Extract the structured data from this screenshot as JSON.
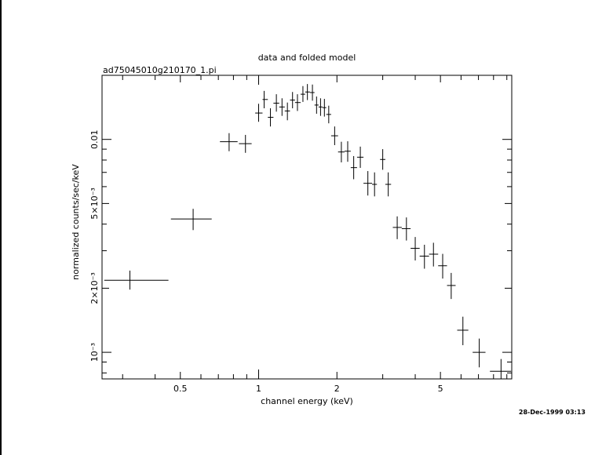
{
  "chart_data": {
    "type": "scatter",
    "title": "data and folded model",
    "subtitle": "ad75045010g210170_1.pi",
    "xlabel": "channel energy (keV)",
    "ylabel": "normalized counts/sec/keV",
    "x_scale": "log",
    "y_scale": "log",
    "xlim": [
      0.25,
      9.4
    ],
    "ylim": [
      0.00075,
      0.02
    ],
    "x_ticks": [
      {
        "value": 0.5,
        "label": "0.5"
      },
      {
        "value": 1,
        "label": "1"
      },
      {
        "value": 2,
        "label": "2"
      },
      {
        "value": 5,
        "label": "5"
      }
    ],
    "y_ticks": [
      {
        "value": 0.001,
        "label": "10⁻³"
      },
      {
        "value": 0.002,
        "label": "2×10⁻³"
      },
      {
        "value": 0.005,
        "label": "5×10⁻³"
      },
      {
        "value": 0.01,
        "label": "0.01"
      }
    ],
    "timestamp": "28-Dec-1999 03:13",
    "series": [
      {
        "points": [
          {
            "x": 0.32,
            "xlo": 0.255,
            "xhi": 0.45,
            "y": 0.00218,
            "ylo": 0.00197,
            "yhi": 0.00242
          },
          {
            "x": 0.56,
            "xlo": 0.46,
            "xhi": 0.66,
            "y": 0.00423,
            "ylo": 0.00375,
            "yhi": 0.00472
          },
          {
            "x": 0.77,
            "xlo": 0.71,
            "xhi": 0.83,
            "y": 0.00975,
            "ylo": 0.0088,
            "yhi": 0.0107
          },
          {
            "x": 0.89,
            "xlo": 0.84,
            "xhi": 0.94,
            "y": 0.00955,
            "ylo": 0.00865,
            "yhi": 0.0105
          },
          {
            "x": 1.0,
            "xlo": 0.97,
            "xhi": 1.035,
            "y": 0.0133,
            "ylo": 0.0121,
            "yhi": 0.0147
          },
          {
            "x": 1.05,
            "xlo": 1.035,
            "xhi": 1.085,
            "y": 0.0154,
            "ylo": 0.014,
            "yhi": 0.0169
          },
          {
            "x": 1.11,
            "xlo": 1.085,
            "xhi": 1.14,
            "y": 0.0127,
            "ylo": 0.0115,
            "yhi": 0.014
          },
          {
            "x": 1.17,
            "xlo": 1.14,
            "xhi": 1.2,
            "y": 0.0148,
            "ylo": 0.0135,
            "yhi": 0.0163
          },
          {
            "x": 1.23,
            "xlo": 1.2,
            "xhi": 1.26,
            "y": 0.0142,
            "ylo": 0.0129,
            "yhi": 0.0156
          },
          {
            "x": 1.29,
            "xlo": 1.26,
            "xhi": 1.32,
            "y": 0.0136,
            "ylo": 0.0123,
            "yhi": 0.0149
          },
          {
            "x": 1.35,
            "xlo": 1.32,
            "xhi": 1.38,
            "y": 0.0153,
            "ylo": 0.014,
            "yhi": 0.0167
          },
          {
            "x": 1.41,
            "xlo": 1.38,
            "xhi": 1.45,
            "y": 0.0149,
            "ylo": 0.0136,
            "yhi": 0.0163
          },
          {
            "x": 1.48,
            "xlo": 1.45,
            "xhi": 1.51,
            "y": 0.0163,
            "ylo": 0.015,
            "yhi": 0.0178
          },
          {
            "x": 1.54,
            "xlo": 1.51,
            "xhi": 1.575,
            "y": 0.0167,
            "ylo": 0.0153,
            "yhi": 0.0182
          },
          {
            "x": 1.61,
            "xlo": 1.575,
            "xhi": 1.64,
            "y": 0.0166,
            "ylo": 0.0152,
            "yhi": 0.0181
          },
          {
            "x": 1.67,
            "xlo": 1.64,
            "xhi": 1.7,
            "y": 0.0145,
            "ylo": 0.0132,
            "yhi": 0.0159
          },
          {
            "x": 1.73,
            "xlo": 1.7,
            "xhi": 1.76,
            "y": 0.0142,
            "ylo": 0.0129,
            "yhi": 0.0156
          },
          {
            "x": 1.79,
            "xlo": 1.76,
            "xhi": 1.82,
            "y": 0.0141,
            "ylo": 0.0128,
            "yhi": 0.0155
          },
          {
            "x": 1.86,
            "xlo": 1.82,
            "xhi": 1.9,
            "y": 0.0131,
            "ylo": 0.0119,
            "yhi": 0.0144
          },
          {
            "x": 1.96,
            "xlo": 1.9,
            "xhi": 2.02,
            "y": 0.0104,
            "ylo": 0.0094,
            "yhi": 0.0115
          },
          {
            "x": 2.08,
            "xlo": 2.02,
            "xhi": 2.14,
            "y": 0.00873,
            "ylo": 0.0078,
            "yhi": 0.00975
          },
          {
            "x": 2.2,
            "xlo": 2.14,
            "xhi": 2.26,
            "y": 0.0088,
            "ylo": 0.00785,
            "yhi": 0.0098
          },
          {
            "x": 2.32,
            "xlo": 2.26,
            "xhi": 2.39,
            "y": 0.00737,
            "ylo": 0.0065,
            "yhi": 0.00835
          },
          {
            "x": 2.46,
            "xlo": 2.39,
            "xhi": 2.53,
            "y": 0.00825,
            "ylo": 0.00735,
            "yhi": 0.00925
          },
          {
            "x": 2.63,
            "xlo": 2.53,
            "xhi": 2.73,
            "y": 0.00622,
            "ylo": 0.00545,
            "yhi": 0.0071
          },
          {
            "x": 2.79,
            "xlo": 2.73,
            "xhi": 2.85,
            "y": 0.00615,
            "ylo": 0.0054,
            "yhi": 0.007
          },
          {
            "x": 3.0,
            "xlo": 2.93,
            "xhi": 3.07,
            "y": 0.00805,
            "ylo": 0.0072,
            "yhi": 0.009
          },
          {
            "x": 3.15,
            "xlo": 3.07,
            "xhi": 3.23,
            "y": 0.00615,
            "ylo": 0.0054,
            "yhi": 0.007
          },
          {
            "x": 3.41,
            "xlo": 3.28,
            "xhi": 3.55,
            "y": 0.00386,
            "ylo": 0.0034,
            "yhi": 0.00435
          },
          {
            "x": 3.7,
            "xlo": 3.55,
            "xhi": 3.84,
            "y": 0.00381,
            "ylo": 0.00335,
            "yhi": 0.0043
          },
          {
            "x": 4.0,
            "xlo": 3.84,
            "xhi": 4.16,
            "y": 0.00308,
            "ylo": 0.0027,
            "yhi": 0.00348
          },
          {
            "x": 4.34,
            "xlo": 4.16,
            "xhi": 4.52,
            "y": 0.00283,
            "ylo": 0.00247,
            "yhi": 0.0032
          },
          {
            "x": 4.7,
            "xlo": 4.52,
            "xhi": 4.9,
            "y": 0.00289,
            "ylo": 0.00253,
            "yhi": 0.00327
          },
          {
            "x": 5.1,
            "xlo": 4.9,
            "xhi": 5.3,
            "y": 0.00255,
            "ylo": 0.00222,
            "yhi": 0.0029
          },
          {
            "x": 5.5,
            "xlo": 5.3,
            "xhi": 5.72,
            "y": 0.00206,
            "ylo": 0.00178,
            "yhi": 0.00236
          },
          {
            "x": 6.1,
            "xlo": 5.8,
            "xhi": 6.4,
            "y": 0.00127,
            "ylo": 0.00108,
            "yhi": 0.00147
          },
          {
            "x": 7.05,
            "xlo": 6.65,
            "xhi": 7.45,
            "y": 0.001,
            "ylo": 0.00085,
            "yhi": 0.00116
          },
          {
            "x": 8.55,
            "xlo": 7.75,
            "xhi": 9.35,
            "y": 0.000815,
            "ylo": 0.00071,
            "yhi": 0.00093
          }
        ]
      }
    ]
  }
}
